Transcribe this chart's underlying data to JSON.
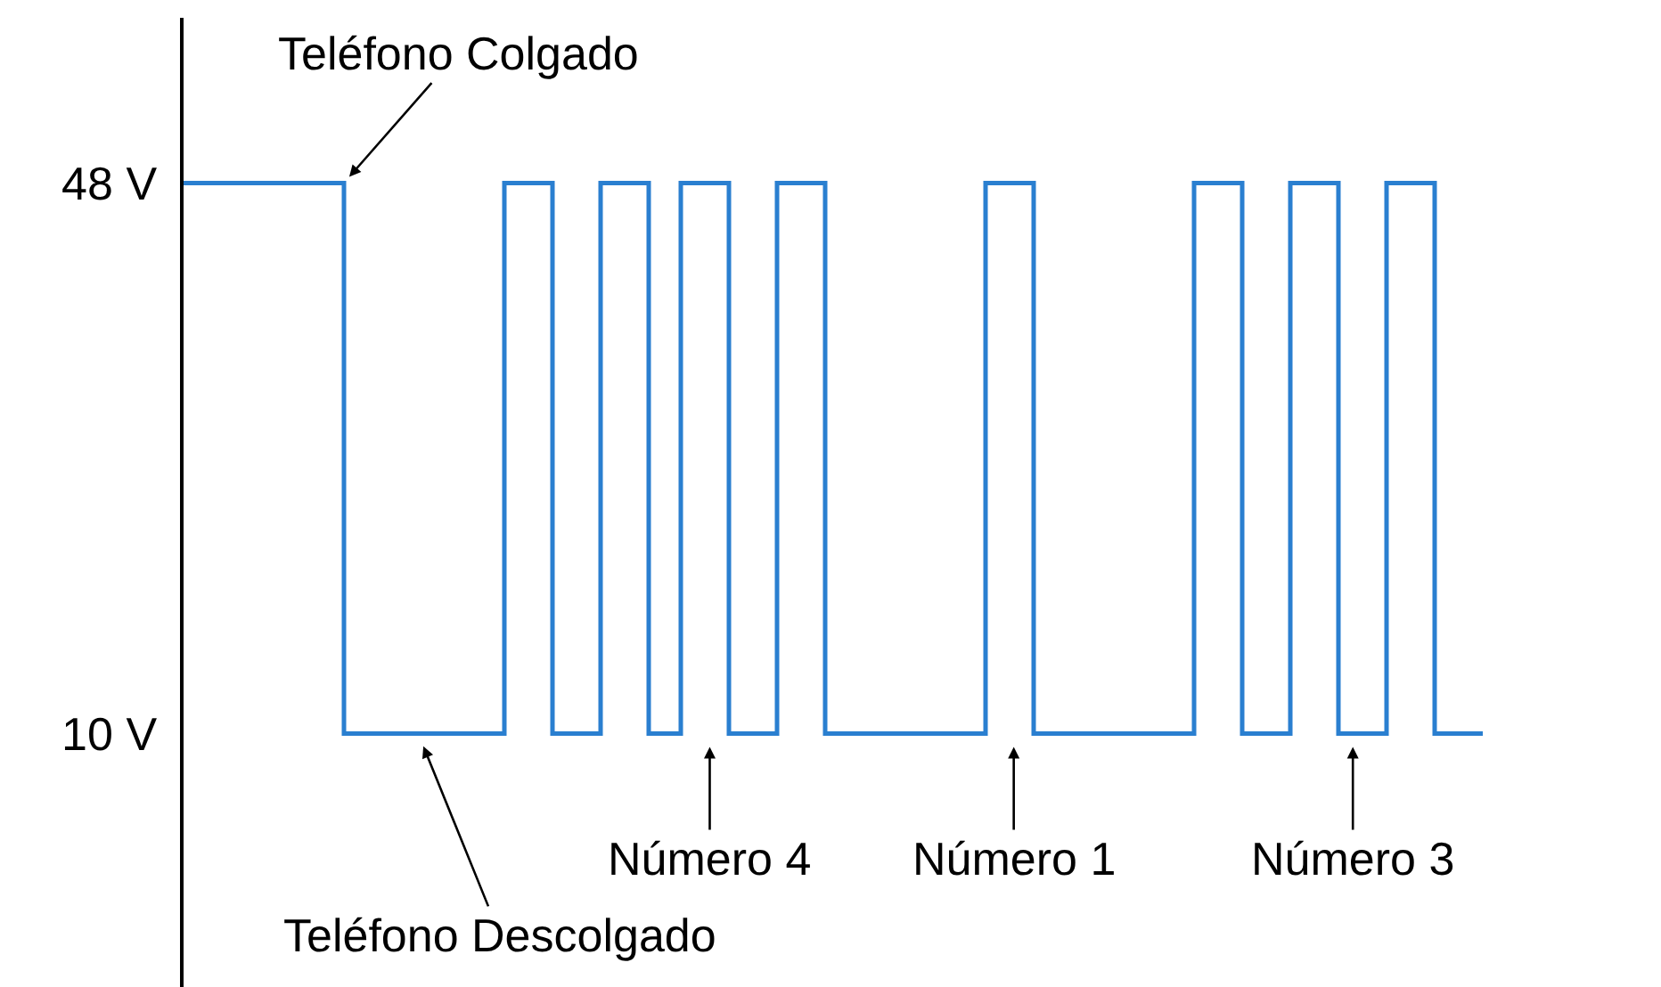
{
  "chart_data": {
    "type": "step",
    "categories": [
      null,
      null,
      null,
      null,
      null,
      null,
      null,
      null,
      null,
      null,
      null,
      null,
      null,
      null,
      null,
      null,
      null,
      null,
      null,
      null,
      null,
      null,
      null,
      null,
      null,
      null,
      null,
      null,
      null,
      null,
      null,
      null,
      null,
      null,
      null,
      null,
      null,
      null,
      null,
      null,
      null,
      null,
      null,
      null,
      null,
      null,
      null,
      null,
      null,
      null,
      null,
      null,
      null,
      null,
      null,
      null,
      null,
      null,
      null,
      null,
      null,
      null,
      null,
      null,
      null,
      null,
      null,
      null,
      null,
      null,
      null,
      null,
      null,
      null,
      null,
      null,
      null,
      null,
      null,
      null,
      null,
      null
    ],
    "values": [
      48,
      48,
      48,
      48,
      48,
      48,
      48,
      48,
      48,
      48,
      10,
      10,
      10,
      10,
      10,
      10,
      10,
      10,
      10,
      10,
      48,
      48,
      48,
      10,
      10,
      10,
      48,
      48,
      48,
      10,
      10,
      48,
      48,
      48,
      10,
      10,
      10,
      48,
      48,
      48,
      10,
      10,
      10,
      10,
      10,
      10,
      10,
      10,
      10,
      10,
      48,
      48,
      48,
      10,
      10,
      10,
      10,
      10,
      10,
      10,
      10,
      10,
      10,
      48,
      48,
      48,
      10,
      10,
      10,
      48,
      48,
      48,
      10,
      10,
      10,
      48,
      48,
      48,
      10,
      10,
      10,
      10
    ],
    "color": "#2a7fd0",
    "ylim": [
      -7.5,
      59.4
    ],
    "yticks": [
      {
        "value": 10,
        "label": "10 V"
      },
      {
        "value": 48,
        "label": "48 V"
      }
    ],
    "grid": false,
    "marker": "none",
    "line_style": "solid",
    "tick_labels": "y",
    "annotations": [
      "Teléfono Colgado",
      "Teléfono Descolgado",
      "Número 4",
      "Número 1",
      "Número 3"
    ]
  }
}
